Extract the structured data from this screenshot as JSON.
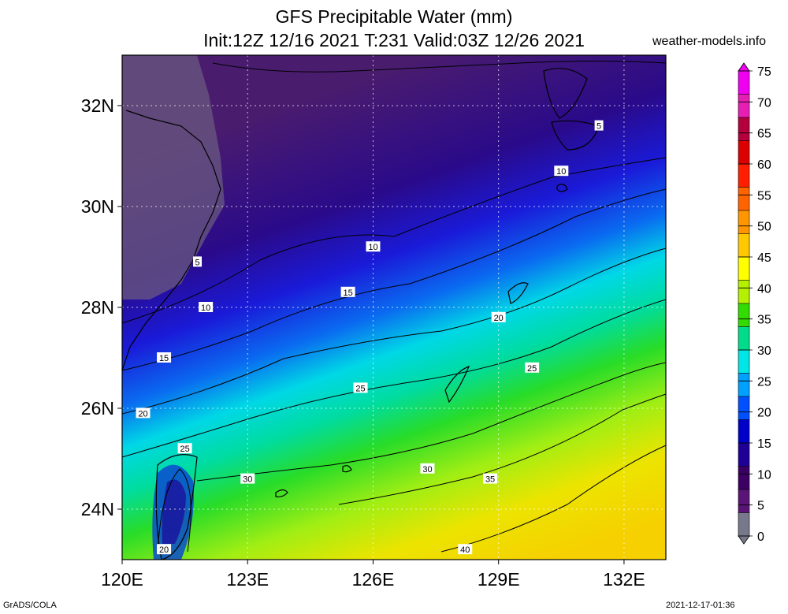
{
  "header": {
    "title": "GFS Precipitable Water (mm)",
    "subtitle": "Init:12Z 12/16 2021 T:231 Valid:03Z 12/26 2021",
    "credit": "weather-models.info"
  },
  "footer": {
    "left": "GrADS/COLA",
    "right": "2021-12-17-01:36"
  },
  "map": {
    "lon_range": [
      120,
      133
    ],
    "lat_range": [
      23,
      33
    ],
    "lon_ticks": [
      {
        "value": 120,
        "label": "120E"
      },
      {
        "value": 123,
        "label": "123E"
      },
      {
        "value": 126,
        "label": "126E"
      },
      {
        "value": 129,
        "label": "129E"
      },
      {
        "value": 132,
        "label": "132E"
      }
    ],
    "lat_ticks": [
      {
        "value": 24,
        "label": "24N"
      },
      {
        "value": 26,
        "label": "26N"
      },
      {
        "value": 28,
        "label": "28N"
      },
      {
        "value": 30,
        "label": "30N"
      },
      {
        "value": 32,
        "label": "32N"
      }
    ],
    "contour_labels": [
      {
        "text": "5",
        "lon": 131.4,
        "lat": 31.6
      },
      {
        "text": "5",
        "lon": 121.8,
        "lat": 28.9
      },
      {
        "text": "10",
        "lon": 130.5,
        "lat": 30.7
      },
      {
        "text": "10",
        "lon": 126.0,
        "lat": 29.2
      },
      {
        "text": "10",
        "lon": 122.0,
        "lat": 28.0
      },
      {
        "text": "15",
        "lon": 125.4,
        "lat": 28.3
      },
      {
        "text": "15",
        "lon": 121.0,
        "lat": 27.0
      },
      {
        "text": "20",
        "lon": 129.0,
        "lat": 27.8
      },
      {
        "text": "20",
        "lon": 120.5,
        "lat": 25.9
      },
      {
        "text": "20",
        "lon": 121.0,
        "lat": 23.2
      },
      {
        "text": "25",
        "lon": 129.8,
        "lat": 26.8
      },
      {
        "text": "25",
        "lon": 125.7,
        "lat": 26.4
      },
      {
        "text": "25",
        "lon": 121.5,
        "lat": 25.2
      },
      {
        "text": "30",
        "lon": 127.3,
        "lat": 24.8
      },
      {
        "text": "30",
        "lon": 123.0,
        "lat": 24.6
      },
      {
        "text": "35",
        "lon": 128.8,
        "lat": 24.6
      },
      {
        "text": "40",
        "lon": 128.2,
        "lat": 23.2
      }
    ]
  },
  "colorbar": {
    "levels": [
      "75",
      "70",
      "65",
      "60",
      "55",
      "50",
      "45",
      "40",
      "35",
      "30",
      "25",
      "20",
      "15",
      "10",
      "5",
      "0"
    ],
    "colors": [
      "#f000f0",
      "#e61eb4",
      "#b4003c",
      "#dc0000",
      "#ff1e00",
      "#ff6400",
      "#ff9600",
      "#ffc800",
      "#ffff00",
      "#b4f000",
      "#32dc00",
      "#00dc8c",
      "#00e6e6",
      "#00a0ff",
      "#0050ff",
      "#0000c8",
      "#1e0096",
      "#3c0064",
      "#5a1478",
      "#78788c"
    ]
  }
}
